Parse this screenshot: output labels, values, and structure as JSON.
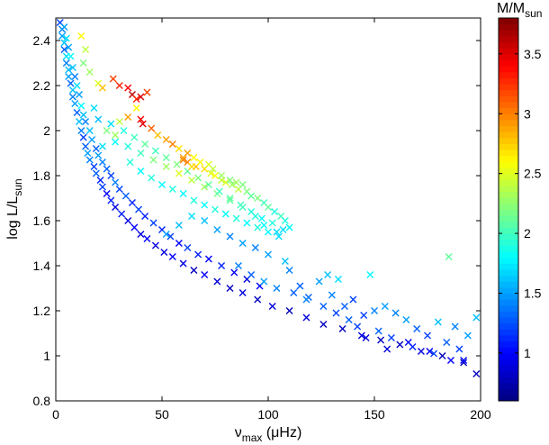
{
  "chart_data": {
    "type": "scatter",
    "marker": "x",
    "xlabel": {
      "main": "ν",
      "sub": "max",
      "tail": " (μHz)"
    },
    "ylabel": {
      "main": "log L/L",
      "sub": "sun"
    },
    "xlim": [
      0,
      200
    ],
    "ylim": [
      0.8,
      2.5
    ],
    "xticks": [
      "0",
      "50",
      "100",
      "150",
      "200"
    ],
    "yticks": [
      "0.8",
      "1",
      "1.2",
      "1.4",
      "1.6",
      "1.8",
      "2",
      "2.2",
      "2.4"
    ],
    "colorbar": {
      "label": {
        "main": "M/M",
        "sub": "sun"
      },
      "range": [
        0.6,
        3.8
      ],
      "ticks": [
        "1",
        "1.5",
        "2",
        "2.5",
        "3",
        "3.5"
      ],
      "colormap": "jet"
    },
    "grid": false,
    "legend": "none",
    "points": [
      [
        2,
        2.48,
        1.2
      ],
      [
        3,
        2.45,
        1.4
      ],
      [
        3,
        2.42,
        1.5
      ],
      [
        4,
        2.39,
        1.6
      ],
      [
        4,
        2.36,
        1.3
      ],
      [
        5,
        2.33,
        1.7
      ],
      [
        5,
        2.3,
        1.4
      ],
      [
        6,
        2.27,
        1.6
      ],
      [
        6,
        2.24,
        1.5
      ],
      [
        7,
        2.21,
        1.3
      ],
      [
        8,
        2.18,
        1.6
      ],
      [
        8,
        2.15,
        1.4
      ],
      [
        9,
        2.12,
        1.5
      ],
      [
        10,
        2.08,
        1.3
      ],
      [
        11,
        2.04,
        1.6
      ],
      [
        12,
        2.0,
        1.4
      ],
      [
        13,
        1.97,
        1.2
      ],
      [
        14,
        1.93,
        1.3
      ],
      [
        15,
        1.9,
        1.5
      ],
      [
        16,
        1.87,
        1.4
      ],
      [
        18,
        1.84,
        1.2
      ],
      [
        19,
        1.81,
        1.3
      ],
      [
        21,
        1.78,
        1.1
      ],
      [
        22,
        1.75,
        1.2
      ],
      [
        24,
        1.72,
        1.0
      ],
      [
        26,
        1.69,
        1.1
      ],
      [
        28,
        1.66,
        0.9
      ],
      [
        31,
        1.63,
        1.1
      ],
      [
        34,
        1.6,
        0.9
      ],
      [
        37,
        1.57,
        1.0
      ],
      [
        40,
        1.54,
        0.9
      ],
      [
        43,
        1.52,
        1.0
      ],
      [
        47,
        1.49,
        0.9
      ],
      [
        51,
        1.46,
        0.9
      ],
      [
        55,
        1.44,
        1.0
      ],
      [
        60,
        1.41,
        0.9
      ],
      [
        65,
        1.38,
        0.8
      ],
      [
        70,
        1.36,
        1.0
      ],
      [
        76,
        1.33,
        0.9
      ],
      [
        82,
        1.3,
        0.8
      ],
      [
        88,
        1.28,
        0.9
      ],
      [
        95,
        1.25,
        0.8
      ],
      [
        102,
        1.22,
        0.9
      ],
      [
        110,
        1.2,
        0.8
      ],
      [
        118,
        1.17,
        0.9
      ],
      [
        126,
        1.14,
        0.8
      ],
      [
        135,
        1.12,
        0.8
      ],
      [
        144,
        1.09,
        0.9
      ],
      [
        153,
        1.07,
        0.8
      ],
      [
        162,
        1.05,
        0.8
      ],
      [
        172,
        1.02,
        0.9
      ],
      [
        182,
        1.0,
        0.8
      ],
      [
        192,
        0.97,
        0.8
      ],
      [
        198,
        0.92,
        0.8
      ],
      [
        4,
        2.46,
        1.5
      ],
      [
        5,
        2.41,
        1.7
      ],
      [
        6,
        2.37,
        1.5
      ],
      [
        7,
        2.33,
        1.8
      ],
      [
        8,
        2.28,
        1.6
      ],
      [
        9,
        2.24,
        1.4
      ],
      [
        10,
        2.2,
        1.7
      ],
      [
        11,
        2.16,
        1.5
      ],
      [
        12,
        2.11,
        1.8
      ],
      [
        13,
        2.07,
        1.6
      ],
      [
        14,
        2.04,
        1.4
      ],
      [
        16,
        2.0,
        1.6
      ],
      [
        17,
        1.96,
        1.5
      ],
      [
        19,
        1.92,
        1.3
      ],
      [
        20,
        1.89,
        1.5
      ],
      [
        22,
        1.86,
        1.4
      ],
      [
        24,
        1.83,
        1.3
      ],
      [
        26,
        1.8,
        1.2
      ],
      [
        28,
        1.77,
        1.4
      ],
      [
        30,
        1.74,
        1.2
      ],
      [
        33,
        1.71,
        1.3
      ],
      [
        36,
        1.68,
        1.1
      ],
      [
        39,
        1.65,
        1.2
      ],
      [
        42,
        1.62,
        1.1
      ],
      [
        46,
        1.59,
        1.2
      ],
      [
        50,
        1.56,
        1.1
      ],
      [
        54,
        1.53,
        1.2
      ],
      [
        58,
        1.5,
        1.0
      ],
      [
        62,
        1.48,
        1.2
      ],
      [
        67,
        1.45,
        1.1
      ],
      [
        72,
        1.43,
        1.0
      ],
      [
        78,
        1.4,
        1.1
      ],
      [
        84,
        1.37,
        1.0
      ],
      [
        90,
        1.34,
        0.9
      ],
      [
        96,
        1.31,
        1.0
      ],
      [
        12,
        2.42,
        2.6
      ],
      [
        14,
        2.36,
        2.4
      ],
      [
        13,
        2.3,
        2.2
      ],
      [
        16,
        2.26,
        2.3
      ],
      [
        20,
        2.21,
        2.5
      ],
      [
        22,
        2.19,
        2.8
      ],
      [
        27,
        2.23,
        3.2
      ],
      [
        30,
        2.2,
        3.3
      ],
      [
        34,
        2.19,
        3.4
      ],
      [
        36,
        2.16,
        3.6
      ],
      [
        38,
        2.14,
        3.3
      ],
      [
        40,
        2.15,
        3.5
      ],
      [
        43,
        2.17,
        3.2
      ],
      [
        38,
        2.1,
        2.6
      ],
      [
        34,
        2.06,
        2.9
      ],
      [
        40,
        2.05,
        3.4
      ],
      [
        41,
        2.03,
        3.5
      ],
      [
        45,
        2.01,
        3.1
      ],
      [
        30,
        2.04,
        2.4
      ],
      [
        24,
        2.0,
        2.2
      ],
      [
        28,
        1.98,
        2.3
      ],
      [
        48,
        1.98,
        2.8
      ],
      [
        52,
        1.96,
        2.9
      ],
      [
        55,
        1.94,
        3.0
      ],
      [
        58,
        1.92,
        2.7
      ],
      [
        62,
        1.9,
        2.9
      ],
      [
        65,
        1.88,
        2.6
      ],
      [
        60,
        1.87,
        3.0
      ],
      [
        66,
        1.84,
        2.8
      ],
      [
        70,
        1.83,
        2.7
      ],
      [
        73,
        1.81,
        2.5
      ],
      [
        75,
        1.8,
        2.6
      ],
      [
        78,
        1.78,
        2.4
      ],
      [
        80,
        1.77,
        2.5
      ],
      [
        83,
        1.76,
        2.3
      ],
      [
        86,
        1.74,
        2.4
      ],
      [
        90,
        1.73,
        2.2
      ],
      [
        92,
        1.71,
        2.1
      ],
      [
        95,
        1.7,
        2.2
      ],
      [
        98,
        1.68,
        2.0
      ],
      [
        100,
        1.66,
        2.1
      ],
      [
        103,
        1.64,
        1.9
      ],
      [
        106,
        1.62,
        2.0
      ],
      [
        108,
        1.6,
        1.9
      ],
      [
        110,
        1.57,
        1.8
      ],
      [
        104,
        1.55,
        1.7
      ],
      [
        98,
        1.58,
        1.8
      ],
      [
        94,
        1.62,
        1.9
      ],
      [
        88,
        1.66,
        2.0
      ],
      [
        82,
        1.69,
        2.1
      ],
      [
        76,
        1.72,
        2.2
      ],
      [
        70,
        1.75,
        2.3
      ],
      [
        64,
        1.78,
        2.4
      ],
      [
        58,
        1.81,
        2.5
      ],
      [
        52,
        1.84,
        2.3
      ],
      [
        46,
        1.87,
        2.2
      ],
      [
        40,
        1.9,
        2.0
      ],
      [
        34,
        1.93,
        1.9
      ],
      [
        28,
        1.95,
        1.8
      ],
      [
        22,
        1.93,
        1.7
      ],
      [
        35,
        1.86,
        1.9
      ],
      [
        40,
        1.82,
        1.8
      ],
      [
        45,
        1.79,
        1.9
      ],
      [
        50,
        1.76,
        1.8
      ],
      [
        55,
        1.74,
        1.9
      ],
      [
        60,
        1.72,
        1.8
      ],
      [
        65,
        1.69,
        1.9
      ],
      [
        70,
        1.67,
        1.8
      ],
      [
        75,
        1.65,
        1.9
      ],
      [
        80,
        1.63,
        1.8
      ],
      [
        85,
        1.61,
        1.9
      ],
      [
        90,
        1.59,
        1.8
      ],
      [
        95,
        1.57,
        1.9
      ],
      [
        100,
        1.55,
        1.8
      ],
      [
        105,
        1.53,
        1.7
      ],
      [
        107,
        1.56,
        1.7
      ],
      [
        102,
        1.59,
        1.9
      ],
      [
        97,
        1.61,
        1.8
      ],
      [
        92,
        1.64,
        1.9
      ],
      [
        87,
        1.67,
        2.0
      ],
      [
        82,
        1.7,
        2.1
      ],
      [
        77,
        1.73,
        2.0
      ],
      [
        72,
        1.76,
        2.1
      ],
      [
        67,
        1.79,
        2.2
      ],
      [
        62,
        1.82,
        2.1
      ],
      [
        57,
        1.85,
        2.2
      ],
      [
        52,
        1.88,
        2.1
      ],
      [
        47,
        1.91,
        2.0
      ],
      [
        42,
        1.94,
        2.1
      ],
      [
        37,
        1.97,
        2.0
      ],
      [
        32,
        2.0,
        1.9
      ],
      [
        26,
        2.03,
        1.7
      ],
      [
        20,
        2.05,
        1.6
      ],
      [
        18,
        2.1,
        1.7
      ],
      [
        60,
        1.88,
        2.9
      ],
      [
        62,
        1.86,
        3.0
      ],
      [
        64,
        1.84,
        2.7
      ],
      [
        68,
        1.86,
        2.6
      ],
      [
        72,
        1.85,
        2.5
      ],
      [
        74,
        1.83,
        2.4
      ],
      [
        78,
        1.8,
        2.3
      ],
      [
        82,
        1.78,
        2.2
      ],
      [
        85,
        1.77,
        2.3
      ],
      [
        88,
        1.76,
        2.2
      ],
      [
        52,
        1.54,
        1.5
      ],
      [
        58,
        1.58,
        1.6
      ],
      [
        64,
        1.62,
        1.7
      ],
      [
        70,
        1.6,
        1.6
      ],
      [
        76,
        1.56,
        1.5
      ],
      [
        82,
        1.53,
        1.4
      ],
      [
        88,
        1.5,
        1.5
      ],
      [
        94,
        1.48,
        1.4
      ],
      [
        100,
        1.45,
        1.5
      ],
      [
        108,
        1.42,
        1.6
      ],
      [
        110,
        1.38,
        1.4
      ],
      [
        115,
        1.31,
        1.3
      ],
      [
        119,
        1.26,
        1.3
      ],
      [
        124,
        1.33,
        1.5
      ],
      [
        128,
        1.36,
        1.6
      ],
      [
        130,
        1.27,
        1.4
      ],
      [
        133,
        1.34,
        1.7
      ],
      [
        136,
        1.22,
        1.3
      ],
      [
        140,
        1.25,
        1.2
      ],
      [
        145,
        1.18,
        1.2
      ],
      [
        148,
        1.36,
        1.8
      ],
      [
        150,
        1.2,
        1.4
      ],
      [
        155,
        1.22,
        1.5
      ],
      [
        160,
        1.19,
        1.4
      ],
      [
        165,
        1.16,
        1.5
      ],
      [
        170,
        1.12,
        1.3
      ],
      [
        175,
        1.09,
        1.2
      ],
      [
        180,
        1.15,
        1.6
      ],
      [
        184,
        1.06,
        1.3
      ],
      [
        185,
        1.44,
        2.1
      ],
      [
        188,
        1.13,
        1.4
      ],
      [
        190,
        1.03,
        1.2
      ],
      [
        194,
        1.09,
        1.5
      ],
      [
        198,
        1.17,
        1.6
      ],
      [
        186,
        0.98,
        1.0
      ],
      [
        192,
        0.98,
        1.0
      ],
      [
        176,
        1.02,
        1.0
      ],
      [
        166,
        1.06,
        1.0
      ],
      [
        156,
        1.03,
        0.9
      ],
      [
        146,
        1.08,
        0.9
      ],
      [
        86,
        1.4,
        1.4
      ],
      [
        92,
        1.36,
        1.3
      ],
      [
        98,
        1.33,
        1.5
      ],
      [
        104,
        1.3,
        1.4
      ],
      [
        112,
        1.28,
        1.3
      ],
      [
        118,
        1.25,
        1.4
      ],
      [
        126,
        1.22,
        1.3
      ],
      [
        132,
        1.19,
        1.2
      ],
      [
        138,
        1.16,
        1.3
      ],
      [
        142,
        1.13,
        1.2
      ],
      [
        152,
        1.11,
        1.3
      ],
      [
        158,
        1.08,
        1.2
      ],
      [
        168,
        1.04,
        1.1
      ],
      [
        178,
        1.01,
        1.2
      ]
    ]
  }
}
